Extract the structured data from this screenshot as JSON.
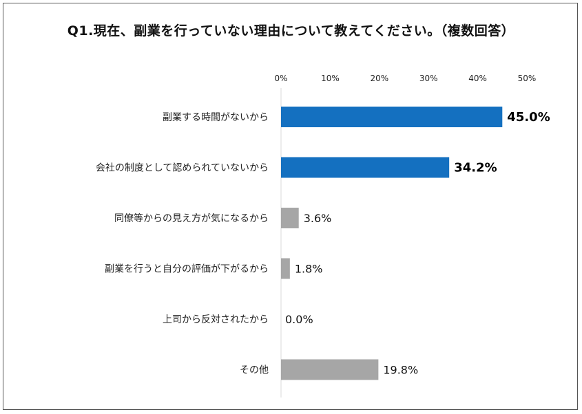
{
  "chart_data": {
    "type": "bar",
    "orientation": "horizontal",
    "title": "Q1.現在、副業を行っていない理由について教えてください。（複数回答）",
    "categories": [
      "副業する時間がないから",
      "会社の制度として認められていないから",
      "同僚等からの見え方が気になるから",
      "副業を行うと自分の評価が下がるから",
      "上司から反対されたから",
      "その他"
    ],
    "values": [
      45.0,
      34.2,
      3.6,
      1.8,
      0.0,
      19.8
    ],
    "value_labels": [
      "45.0%",
      "34.2%",
      "3.6%",
      "1.8%",
      "0.0%",
      "19.8%"
    ],
    "highlighted": [
      true,
      true,
      false,
      false,
      false,
      false
    ],
    "xlim": [
      0,
      50
    ],
    "xticks": [
      "0%",
      "10%",
      "20%",
      "30%",
      "40%",
      "50%"
    ],
    "axis_position": "top",
    "grid": false,
    "colors": {
      "highlight": "#1470c0",
      "normal": "#a6a6a6",
      "axis": "#d9d9d9"
    }
  }
}
